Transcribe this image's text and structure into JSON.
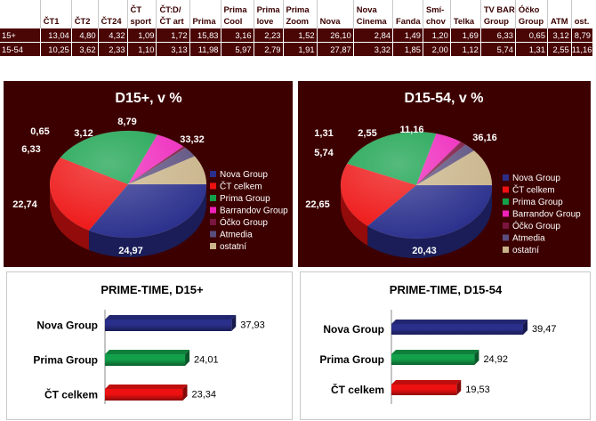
{
  "table": {
    "headers": [
      "",
      "ČT1",
      "ČT2",
      "ČT24",
      "ČT\nsport",
      "ČT:D/\nČT art",
      "Prima",
      "Prima\nCool",
      "Prima\nlove",
      "Prima\nZoom",
      "Nova",
      "Nova\nCinema",
      "Fanda",
      "Smí-\nchov",
      "Telka",
      "TV BAR\nGroup",
      "Óčko\nGroup",
      "ATM",
      "ost."
    ],
    "rows": [
      {
        "label": "15+",
        "values": [
          "13,04",
          "4,80",
          "4,32",
          "1,09",
          "1,72",
          "15,83",
          "3,16",
          "2,23",
          "1,52",
          "26,10",
          "2,84",
          "1,49",
          "1,20",
          "1,69",
          "6,33",
          "0,65",
          "3,12",
          "8,79"
        ]
      },
      {
        "label": "15-54",
        "values": [
          "10,25",
          "3,62",
          "2,33",
          "1,10",
          "3,13",
          "11,98",
          "5,97",
          "2,79",
          "1,91",
          "27,87",
          "3,32",
          "1,85",
          "2,00",
          "1,12",
          "5,74",
          "1,31",
          "2,55",
          "11,16"
        ]
      }
    ]
  },
  "legend": [
    "Nova Group",
    "ČT celkem",
    "Prima Group",
    "Barrandov Group",
    "Óčko Group",
    "Atmedia",
    "ostatní"
  ],
  "colors": {
    "nova": "#2a2f8c",
    "ct": "#ee1111",
    "prima": "#13a04a",
    "barrandov": "#ee22bb",
    "ocko": "#7a1540",
    "atmedia": "#5a4e7e",
    "ostatni": "#c9b48a",
    "panel_bg": "#3d0000",
    "table_bg": "#4a0505"
  },
  "chart_data": [
    {
      "type": "pie",
      "title": "D15+, v %",
      "labels": [
        "Nova Group",
        "ČT celkem",
        "Prima Group",
        "Barrandov Group",
        "Óčko Group",
        "Atmedia",
        "ostatní"
      ],
      "values": [
        33.32,
        24.97,
        22.74,
        6.33,
        0.65,
        3.12,
        8.79
      ],
      "data_labels": [
        "33,32",
        "24,97",
        "22,74",
        "6,33",
        "0,65",
        "3,12",
        "8,79"
      ],
      "legend_position": "right"
    },
    {
      "type": "pie",
      "title": "D15-54, v %",
      "labels": [
        "Nova Group",
        "ČT celkem",
        "Prima Group",
        "Barrandov Group",
        "Óčko Group",
        "Atmedia",
        "ostatní"
      ],
      "values": [
        36.16,
        20.43,
        22.65,
        5.74,
        1.31,
        2.55,
        11.16
      ],
      "data_labels": [
        "36,16",
        "20,43",
        "22,65",
        "5,74",
        "1,31",
        "2,55",
        "11,16"
      ],
      "legend_position": "right"
    },
    {
      "type": "bar",
      "orientation": "horizontal",
      "title": "PRIME-TIME, D15+",
      "categories": [
        "Nova Group",
        "Prima Group",
        "ČT celkem"
      ],
      "values": [
        37.93,
        24.01,
        23.34
      ],
      "data_labels": [
        "37,93",
        "24,01",
        "23,34"
      ]
    },
    {
      "type": "bar",
      "orientation": "horizontal",
      "title": "PRIME-TIME, D15-54",
      "categories": [
        "Nova Group",
        "Prima Group",
        "ČT celkem"
      ],
      "values": [
        39.47,
        24.92,
        19.53
      ],
      "data_labels": [
        "39,47",
        "24,92",
        "19,53"
      ]
    }
  ]
}
